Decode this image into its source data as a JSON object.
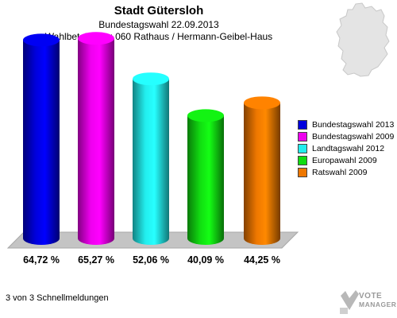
{
  "header": {
    "title": "Stadt Gütersloh",
    "subtitle1": "Bundestagswahl 22.09.2013",
    "subtitle2": "Wahlbeteiligung 060 Rathaus / Hermann-Geibel-Haus"
  },
  "chart_data": {
    "type": "bar",
    "categories": [
      "Bundestagswahl 2013",
      "Bundestagswahl 2009",
      "Landtagswahl 2012",
      "Europawahl 2009",
      "Ratswahl 2009"
    ],
    "values": [
      64.72,
      65.27,
      52.06,
      40.09,
      44.25
    ],
    "value_labels": [
      "64,72 %",
      "65,27 %",
      "52,06 %",
      "40,09 %",
      "44,25 %"
    ],
    "colors": [
      "#0000dd",
      "#ee00ee",
      "#22eeee",
      "#11dd11",
      "#ee7700"
    ],
    "ylim": [
      0,
      70
    ],
    "legend_position": "right"
  },
  "footer": {
    "text": "3 von 3 Schnellmeldungen"
  },
  "logo": {
    "line1": "VOTE",
    "line2": "MANAGER",
    "icon": "vote-manager-check-icon"
  },
  "map": {
    "icon": "germany-map-icon"
  }
}
